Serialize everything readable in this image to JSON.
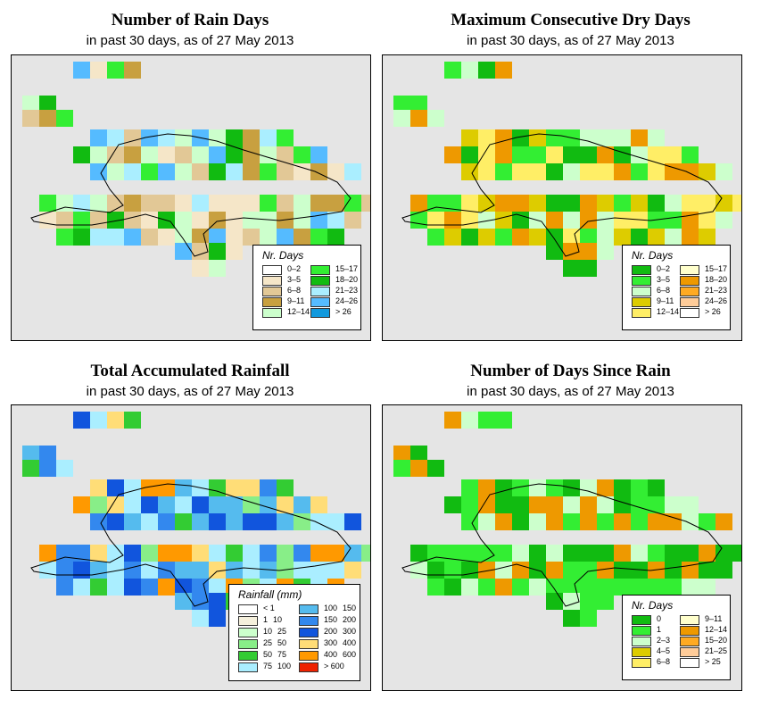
{
  "panels": [
    {
      "title": "Number of Rain Days",
      "subtitle": "in past 30 days, as of  27 May 2013",
      "legend_title": "Nr. Days",
      "legend_items": [
        {
          "label": "0–2",
          "color": "#ffffff"
        },
        {
          "label": "3–5",
          "color": "#f5e6c8"
        },
        {
          "label": "6–8",
          "color": "#e2c896"
        },
        {
          "label": "9–11",
          "color": "#c8a040"
        },
        {
          "label": "12–14",
          "color": "#ccffcc"
        },
        {
          "label": "15–17",
          "color": "#33ee33"
        },
        {
          "label": "18–20",
          "color": "#11bb11"
        },
        {
          "label": "21–23",
          "color": "#aaeeff"
        },
        {
          "label": "24–26",
          "color": "#55bbff"
        },
        {
          "label": "> 26",
          "color": "#1199dd"
        }
      ],
      "map_palette": [
        "#f5e6c8",
        "#e2c896",
        "#c8a040",
        "#ccffcc",
        "#33ee33",
        "#11bb11",
        "#aaeeff",
        "#55bbff"
      ]
    },
    {
      "title": "Maximum Consecutive Dry Days",
      "subtitle": "in past 30 days, as of  27 May 2013",
      "legend_title": "Nr. Days",
      "legend_items": [
        {
          "label": "0–2",
          "color": "#11bb11"
        },
        {
          "label": "3–5",
          "color": "#33ee33"
        },
        {
          "label": "6–8",
          "color": "#ccffcc"
        },
        {
          "label": "9–11",
          "color": "#ddcc00"
        },
        {
          "label": "12–14",
          "color": "#ffee66"
        },
        {
          "label": "15–17",
          "color": "#ffffcc"
        },
        {
          "label": "18–20",
          "color": "#ee9900"
        },
        {
          "label": "21–23",
          "color": "#ffaa22"
        },
        {
          "label": "24–26",
          "color": "#ffcc99"
        },
        {
          "label": "> 26",
          "color": "#ffffff"
        }
      ],
      "map_palette": [
        "#33ee33",
        "#11bb11",
        "#ccffcc",
        "#ddcc00",
        "#ffee66",
        "#ee9900"
      ]
    },
    {
      "title": "Total Accumulated Rainfall",
      "subtitle": "in past 30 days, as of  27 May 2013",
      "legend_title": "Rainfall (mm)",
      "legend_items": [
        {
          "label_a": "< 1",
          "label_b": "",
          "color": "#ffffff"
        },
        {
          "label_a": "1",
          "label_b": "10",
          "color": "#f5f0dc"
        },
        {
          "label_a": "10",
          "label_b": "25",
          "color": "#ccffcc"
        },
        {
          "label_a": "25",
          "label_b": "50",
          "color": "#88ee88"
        },
        {
          "label_a": "50",
          "label_b": "75",
          "color": "#33cc33"
        },
        {
          "label_a": "75",
          "label_b": "100",
          "color": "#aaeeff"
        },
        {
          "label_a": "100",
          "label_b": "150",
          "color": "#55bbee"
        },
        {
          "label_a": "150",
          "label_b": "200",
          "color": "#3388ee"
        },
        {
          "label_a": "200",
          "label_b": "300",
          "color": "#1155dd"
        },
        {
          "label_a": "300",
          "label_b": "400",
          "color": "#ffdd77"
        },
        {
          "label_a": "400",
          "label_b": "600",
          "color": "#ff9900"
        },
        {
          "label_a": "> 600",
          "label_b": "",
          "color": "#ee2200"
        }
      ],
      "map_palette": [
        "#88ee88",
        "#33cc33",
        "#aaeeff",
        "#55bbee",
        "#3388ee",
        "#1155dd",
        "#ffdd77",
        "#ff9900"
      ]
    },
    {
      "title": "Number of Days Since Rain",
      "subtitle": "in past 30 days, as of  27 May 2013",
      "legend_title": "Nr. Days",
      "legend_items": [
        {
          "label": "0",
          "color": "#11bb11"
        },
        {
          "label": "1",
          "color": "#33ee33"
        },
        {
          "label": "2–3",
          "color": "#ccffcc"
        },
        {
          "label": "4–5",
          "color": "#ddcc00"
        },
        {
          "label": "6–8",
          "color": "#ffee66"
        },
        {
          "label": "9–11",
          "color": "#ffffcc"
        },
        {
          "label": "12–14",
          "color": "#ee9900"
        },
        {
          "label": "15–20",
          "color": "#ffaa22"
        },
        {
          "label": "21–25",
          "color": "#ffcc99"
        },
        {
          "label": "> 25",
          "color": "#ffffff"
        }
      ],
      "map_palette": [
        "#11bb11",
        "#33ee33",
        "#11bb11",
        "#33ee33",
        "#ccffcc",
        "#ee9900"
      ]
    }
  ]
}
